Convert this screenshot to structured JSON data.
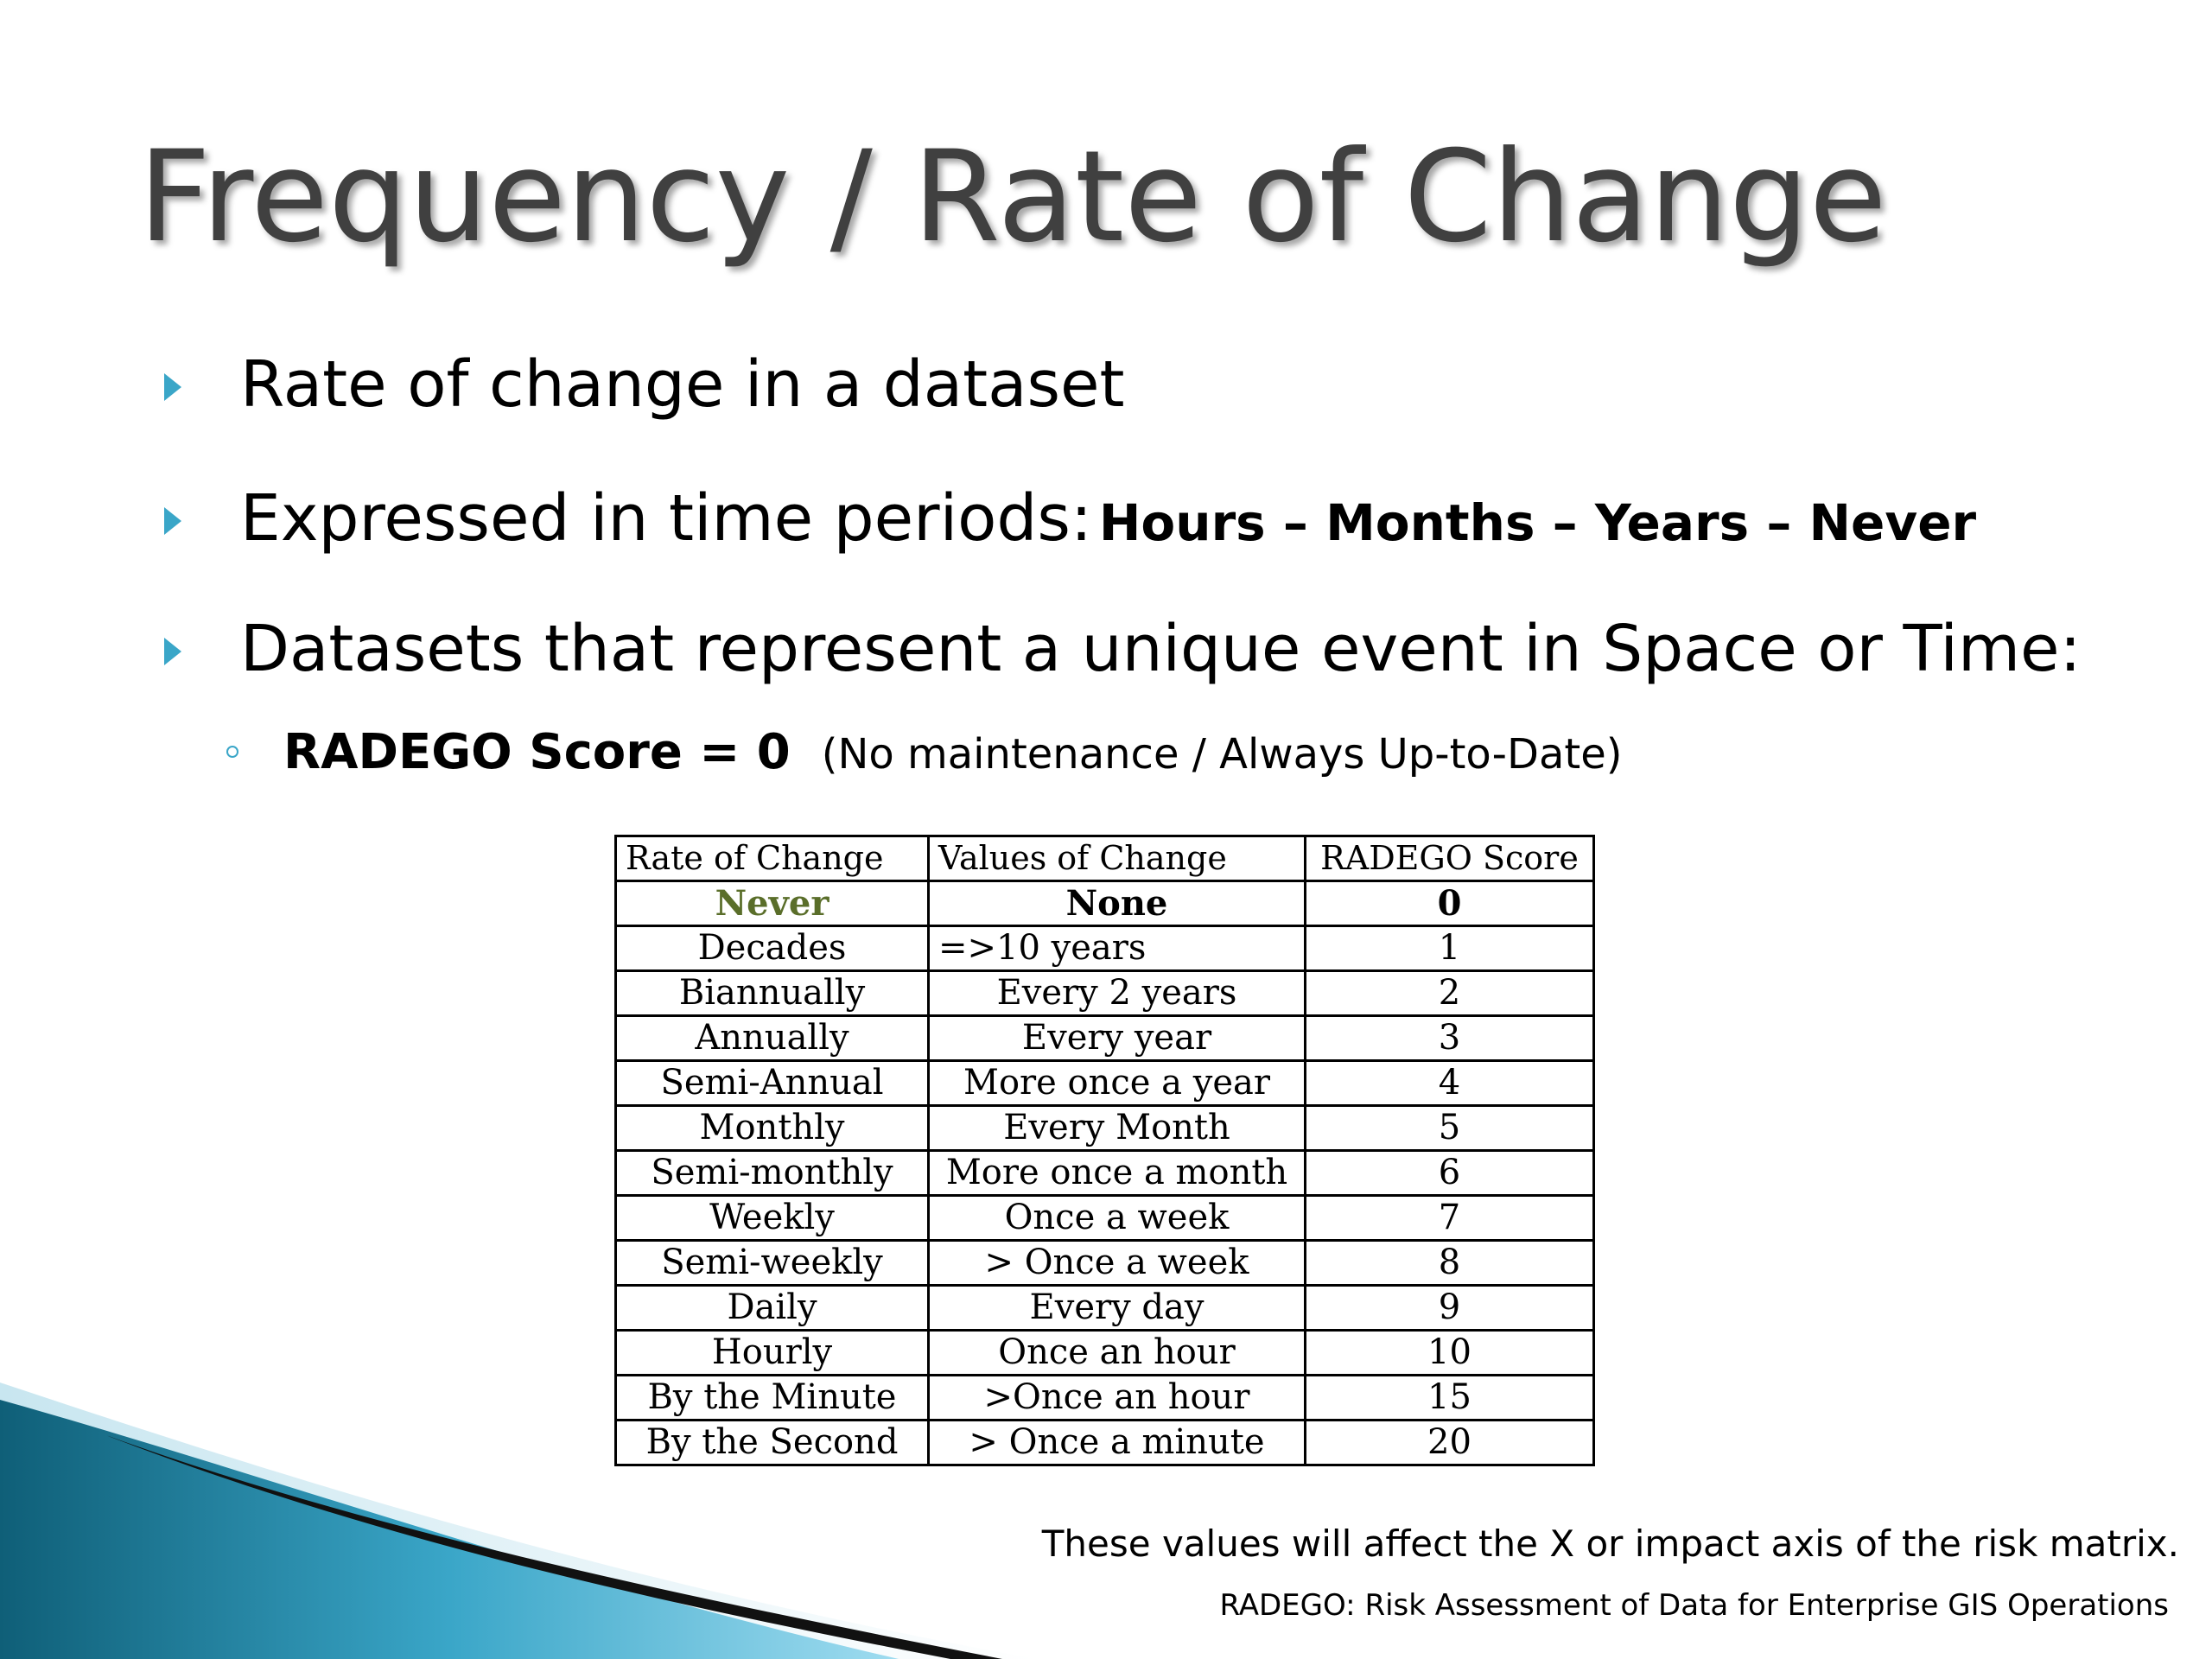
{
  "slide": {
    "title": "Frequency / Rate of Change",
    "bullets": [
      {
        "text": "Rate of change in a dataset"
      },
      {
        "text": "Expressed in time periods: ",
        "emphasis": "Hours – Months – Years – Never"
      },
      {
        "text": "Datasets that represent a unique event in Space or Time:"
      }
    ],
    "sub_bullet": {
      "score": "RADEGO Score = 0",
      "note": "(No maintenance / Always Up-to-Date)"
    }
  },
  "table": {
    "headers": [
      "Rate of Change",
      "Values of Change",
      "RADEGO Score"
    ],
    "rows": [
      [
        "Never",
        "None",
        "0"
      ],
      [
        "Decades",
        "=>10 years",
        "1"
      ],
      [
        "Biannually",
        "Every 2 years",
        "2"
      ],
      [
        "Annually",
        "Every year",
        "3"
      ],
      [
        "Semi-Annual",
        "More once a year",
        "4"
      ],
      [
        "Monthly",
        "Every Month",
        "5"
      ],
      [
        "Semi-monthly",
        "More once a month",
        "6"
      ],
      [
        "Weekly",
        "Once a week",
        "7"
      ],
      [
        "Semi-weekly",
        "> Once a week",
        "8"
      ],
      [
        "Daily",
        "Every day",
        "9"
      ],
      [
        "Hourly",
        "Once an hour",
        "10"
      ],
      [
        "By the Minute",
        ">Once an hour",
        "15"
      ],
      [
        "By the Second",
        "> Once a minute",
        "20"
      ]
    ]
  },
  "footnotes": {
    "impact": "These values will affect the X or impact axis of the risk matrix.",
    "acronym": "RADEGO: Risk Assessment of Data for Enterprise GIS Operations"
  },
  "colors": {
    "accent": "#3aa6c8",
    "title": "#404040",
    "never_green": "#5a6e2a",
    "swoosh_dark": "#0f5f78",
    "swoosh_light": "#7fd0ea"
  }
}
